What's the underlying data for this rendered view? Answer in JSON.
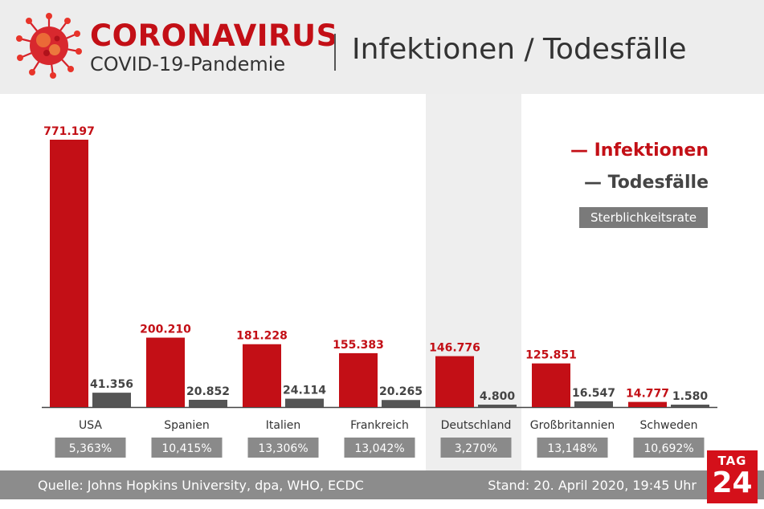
{
  "header": {
    "brand_title": "CORONAVIRUS",
    "brand_subtitle": "COVID-19-Pandemie",
    "topic": "Infektionen / Todesfälle"
  },
  "legend": {
    "infections": "— Infektionen",
    "deaths": "— Todesfälle",
    "rate": "Sterblichkeitsrate"
  },
  "footer": {
    "source": "Quelle: Johns Hopkins University, dpa, WHO, ECDC",
    "date": "Stand: 20. April 2020, 19:45 Uhr"
  },
  "logo": {
    "top": "TAG",
    "bottom": "24"
  },
  "colors": {
    "infections": "#c30f16",
    "deaths": "#555555",
    "rate_box": "#8a8a8a",
    "highlight": "#eeeeee"
  },
  "chart_data": {
    "type": "bar",
    "categories": [
      "USA",
      "Spanien",
      "Italien",
      "Frankreich",
      "Deutschland",
      "Großbritannien",
      "Schweden"
    ],
    "highlighted_category": "Deutschland",
    "series": [
      {
        "name": "Infektionen",
        "values": [
          771197,
          200210,
          181228,
          155383,
          146776,
          125851,
          14777
        ],
        "labels": [
          "771.197",
          "200.210",
          "181.228",
          "155.383",
          "146.776",
          "125.851",
          "14.777"
        ]
      },
      {
        "name": "Todesfälle",
        "values": [
          41356,
          20852,
          24114,
          20265,
          4800,
          16547,
          1580
        ],
        "labels": [
          "41.356",
          "20.852",
          "24.114",
          "20.265",
          "4.800",
          "16.547",
          "1.580"
        ]
      }
    ],
    "rates": [
      "5,363%",
      "10,415%",
      "13,306%",
      "13,042%",
      "3,270%",
      "13,148%",
      "10,692%"
    ],
    "ylim": [
      0,
      771197
    ]
  }
}
